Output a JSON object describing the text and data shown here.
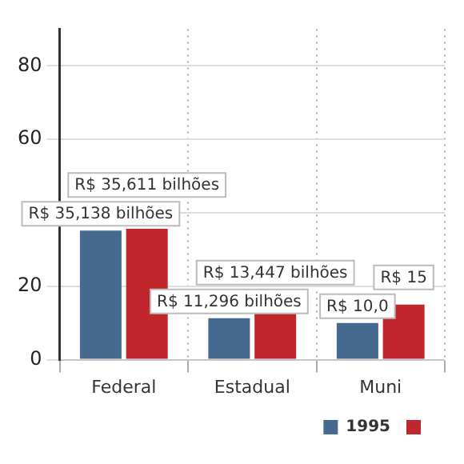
{
  "chart_data": {
    "type": "bar",
    "categories": [
      "Federal",
      "Estadual",
      "Muni"
    ],
    "series": [
      {
        "name": "1995",
        "color": "#46698f",
        "values": [
          35.138,
          11.296,
          10.0
        ],
        "value_labels": [
          "R$ 35,138 bilhões",
          "R$ 11,296 bilhões",
          "R$ 10,0"
        ]
      },
      {
        "color": "#c0272d",
        "values": [
          35.611,
          13.447,
          15
        ],
        "value_labels": [
          "R$ 35,611 bilhões",
          "R$ 13,447 bilhões",
          "R$ 15"
        ]
      }
    ],
    "ylim": [
      0,
      90
    ],
    "yticks": [
      0,
      20,
      {
        "value": 40,
        "label": null
      },
      60,
      80
    ],
    "grid": true,
    "legend": "bottom right"
  }
}
